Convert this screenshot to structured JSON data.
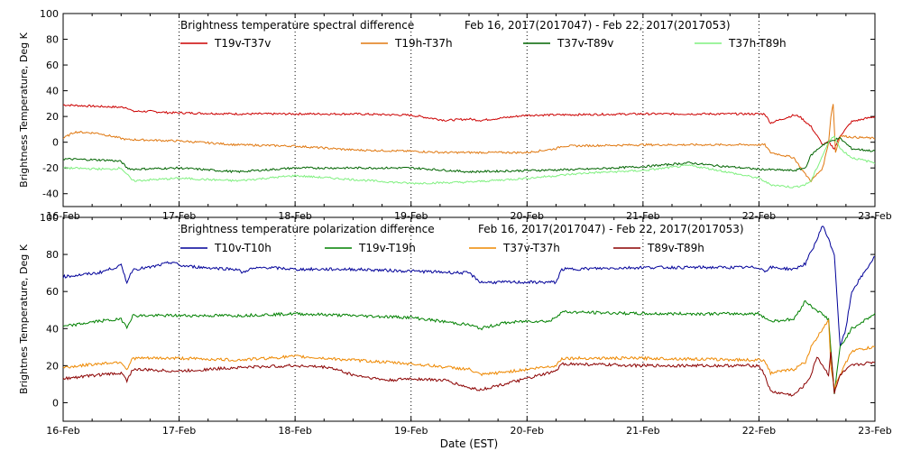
{
  "x_axis_label": "Date (EST)",
  "chart_data": [
    {
      "type": "line",
      "title": "Brightness temperature spectral difference",
      "date_range": "Feb 16, 2017(2017047) - Feb 22, 2017(2017053)",
      "ylabel": "Brightness Temperature, Deg K",
      "xlabel": "",
      "ylim": [
        -50,
        100
      ],
      "yticks": [
        -40,
        -20,
        0,
        20,
        40,
        60,
        80,
        100
      ],
      "xlim": [
        0,
        7
      ],
      "xtick_labels": [
        "16-Feb",
        "17-Feb",
        "18-Feb",
        "19-Feb",
        "20-Feb",
        "21-Feb",
        "22-Feb",
        "23-Feb"
      ],
      "grid": "vertical dotted",
      "legend": "top",
      "series": [
        {
          "name": "T19v-T37v",
          "color": "#cc0000",
          "x": [
            0,
            0.25,
            0.55,
            0.6,
            0.75,
            0.9,
            1.5,
            2.5,
            3.0,
            3.3,
            3.5,
            3.6,
            4.0,
            5.0,
            6.0,
            6.05,
            6.1,
            6.3,
            6.35,
            6.45,
            6.55,
            6.6,
            6.65,
            6.7,
            6.8,
            7.0
          ],
          "y": [
            29,
            28,
            27,
            24,
            24,
            23,
            22,
            22,
            21,
            17,
            18,
            17,
            21,
            22,
            22,
            22,
            15,
            21,
            20,
            12,
            -2,
            0,
            -5,
            5,
            16,
            20
          ]
        },
        {
          "name": "T19h-T37h",
          "color": "#e07810",
          "x": [
            0,
            0.1,
            0.3,
            0.55,
            0.6,
            1.0,
            1.5,
            2.0,
            2.5,
            3.0,
            3.3,
            3.6,
            4.0,
            4.25,
            4.3,
            5.0,
            6.0,
            6.05,
            6.1,
            6.3,
            6.4,
            6.45,
            6.55,
            6.6,
            6.62,
            6.64,
            6.66,
            6.7,
            6.8,
            7.0
          ],
          "y": [
            3,
            8,
            7,
            2,
            2,
            1,
            -2,
            -3,
            -6,
            -7,
            -8,
            -8,
            -8,
            -5,
            -3,
            -2,
            -2,
            -2,
            -8,
            -12,
            -25,
            -30,
            -20,
            0,
            20,
            30,
            -8,
            5,
            4,
            3
          ]
        },
        {
          "name": "T37v-T89v",
          "color": "#006400",
          "x": [
            0,
            0.4,
            0.5,
            0.55,
            0.6,
            1.0,
            1.5,
            2.0,
            3.0,
            3.5,
            4.0,
            4.5,
            5.0,
            5.4,
            5.6,
            6.0,
            6.3,
            6.4,
            6.45,
            6.55,
            6.6,
            6.65,
            6.7,
            6.8,
            7.0
          ],
          "y": [
            -13,
            -14,
            -15,
            -20,
            -21,
            -20,
            -23,
            -20,
            -20,
            -23,
            -22,
            -21,
            -19,
            -16,
            -18,
            -21,
            -22,
            -20,
            -10,
            -2,
            0,
            2,
            3,
            -5,
            -7
          ]
        },
        {
          "name": "T37h-T89h",
          "color": "#7ff07f",
          "x": [
            0,
            0.4,
            0.5,
            0.55,
            0.6,
            1.0,
            1.5,
            2.0,
            2.5,
            3.0,
            3.5,
            4.0,
            4.5,
            5.0,
            5.4,
            5.6,
            6.0,
            6.1,
            6.3,
            6.4,
            6.45,
            6.55,
            6.6,
            6.65,
            6.7,
            6.8,
            7.0
          ],
          "y": [
            -20,
            -21,
            -20,
            -25,
            -30,
            -28,
            -30,
            -26,
            -29,
            -32,
            -31,
            -28,
            -24,
            -22,
            -18,
            -21,
            -28,
            -33,
            -35,
            -33,
            -30,
            -10,
            0,
            5,
            -5,
            -12,
            -16
          ]
        }
      ]
    },
    {
      "type": "line",
      "title": "Brightness temperature polarization difference",
      "date_range": "Feb 16, 2017(2017047) - Feb 22, 2017(2017053)",
      "ylabel": "Brightnes Temperature, Deg K",
      "xlabel": "Date (EST)",
      "ylim": [
        -10,
        100
      ],
      "yticks": [
        0,
        20,
        40,
        60,
        80,
        100
      ],
      "xlim": [
        0,
        7
      ],
      "xtick_labels": [
        "16-Feb",
        "17-Feb",
        "18-Feb",
        "19-Feb",
        "20-Feb",
        "21-Feb",
        "22-Feb",
        "23-Feb"
      ],
      "grid": "vertical dotted",
      "legend": "top",
      "series": [
        {
          "name": "T10v-T10h",
          "color": "#000099",
          "x": [
            0,
            0.3,
            0.4,
            0.5,
            0.55,
            0.6,
            0.75,
            0.95,
            1.0,
            1.2,
            1.5,
            1.55,
            1.6,
            1.75,
            2.0,
            2.5,
            3.0,
            3.5,
            3.6,
            4.0,
            4.25,
            4.3,
            5.0,
            6.0,
            6.05,
            6.1,
            6.3,
            6.4,
            6.5,
            6.55,
            6.65,
            6.7,
            6.75,
            6.8,
            7.0
          ],
          "y": [
            68,
            70,
            72,
            74,
            65,
            72,
            73,
            76,
            74,
            73,
            72,
            70,
            72,
            73,
            72,
            72,
            71,
            70,
            65,
            65,
            65,
            72,
            73,
            73,
            71,
            73,
            72,
            75,
            88,
            96,
            80,
            30,
            40,
            60,
            79
          ]
        },
        {
          "name": "T19v-T19h",
          "color": "#008000",
          "x": [
            0,
            0.3,
            0.5,
            0.55,
            0.6,
            1.0,
            1.5,
            2.0,
            2.5,
            3.0,
            3.5,
            3.6,
            3.8,
            4.0,
            4.2,
            4.3,
            5.0,
            6.0,
            6.05,
            6.1,
            6.3,
            6.4,
            6.45,
            6.5,
            6.6,
            6.65,
            6.7,
            6.8,
            7.0
          ],
          "y": [
            41,
            44,
            45,
            41,
            47,
            47,
            47,
            48,
            47,
            46,
            42,
            40,
            43,
            44,
            44,
            49,
            48,
            48,
            46,
            44,
            45,
            55,
            52,
            50,
            45,
            5,
            30,
            40,
            48
          ]
        },
        {
          "name": "T37v-T37h",
          "color": "#ee8800",
          "x": [
            0,
            0.3,
            0.5,
            0.55,
            0.6,
            1.0,
            1.5,
            2.0,
            2.5,
            3.0,
            3.5,
            3.6,
            4.0,
            4.25,
            4.3,
            5.0,
            6.0,
            6.05,
            6.1,
            6.3,
            6.4,
            6.45,
            6.5,
            6.6,
            6.62,
            6.65,
            6.7,
            6.8,
            7.0
          ],
          "y": [
            19,
            21,
            22,
            18,
            24,
            24,
            23,
            25,
            23,
            21,
            18,
            15,
            18,
            20,
            24,
            24,
            23,
            23,
            16,
            18,
            22,
            30,
            35,
            45,
            20,
            8,
            15,
            28,
            30
          ]
        },
        {
          "name": "T89v-T89h",
          "color": "#8b0000",
          "x": [
            0,
            0.3,
            0.5,
            0.55,
            0.6,
            1.0,
            1.5,
            2.0,
            2.3,
            2.5,
            2.8,
            3.0,
            3.3,
            3.5,
            3.6,
            4.0,
            4.25,
            4.3,
            5.0,
            6.0,
            6.05,
            6.1,
            6.3,
            6.4,
            6.45,
            6.5,
            6.55,
            6.6,
            6.62,
            6.65,
            6.7,
            6.8,
            7.0
          ],
          "y": [
            13,
            15,
            16,
            12,
            18,
            17,
            19,
            20,
            19,
            15,
            12,
            13,
            12,
            8,
            7,
            13,
            17,
            21,
            20,
            20,
            15,
            6,
            4,
            10,
            15,
            25,
            20,
            15,
            28,
            5,
            15,
            20,
            22
          ]
        }
      ]
    }
  ]
}
